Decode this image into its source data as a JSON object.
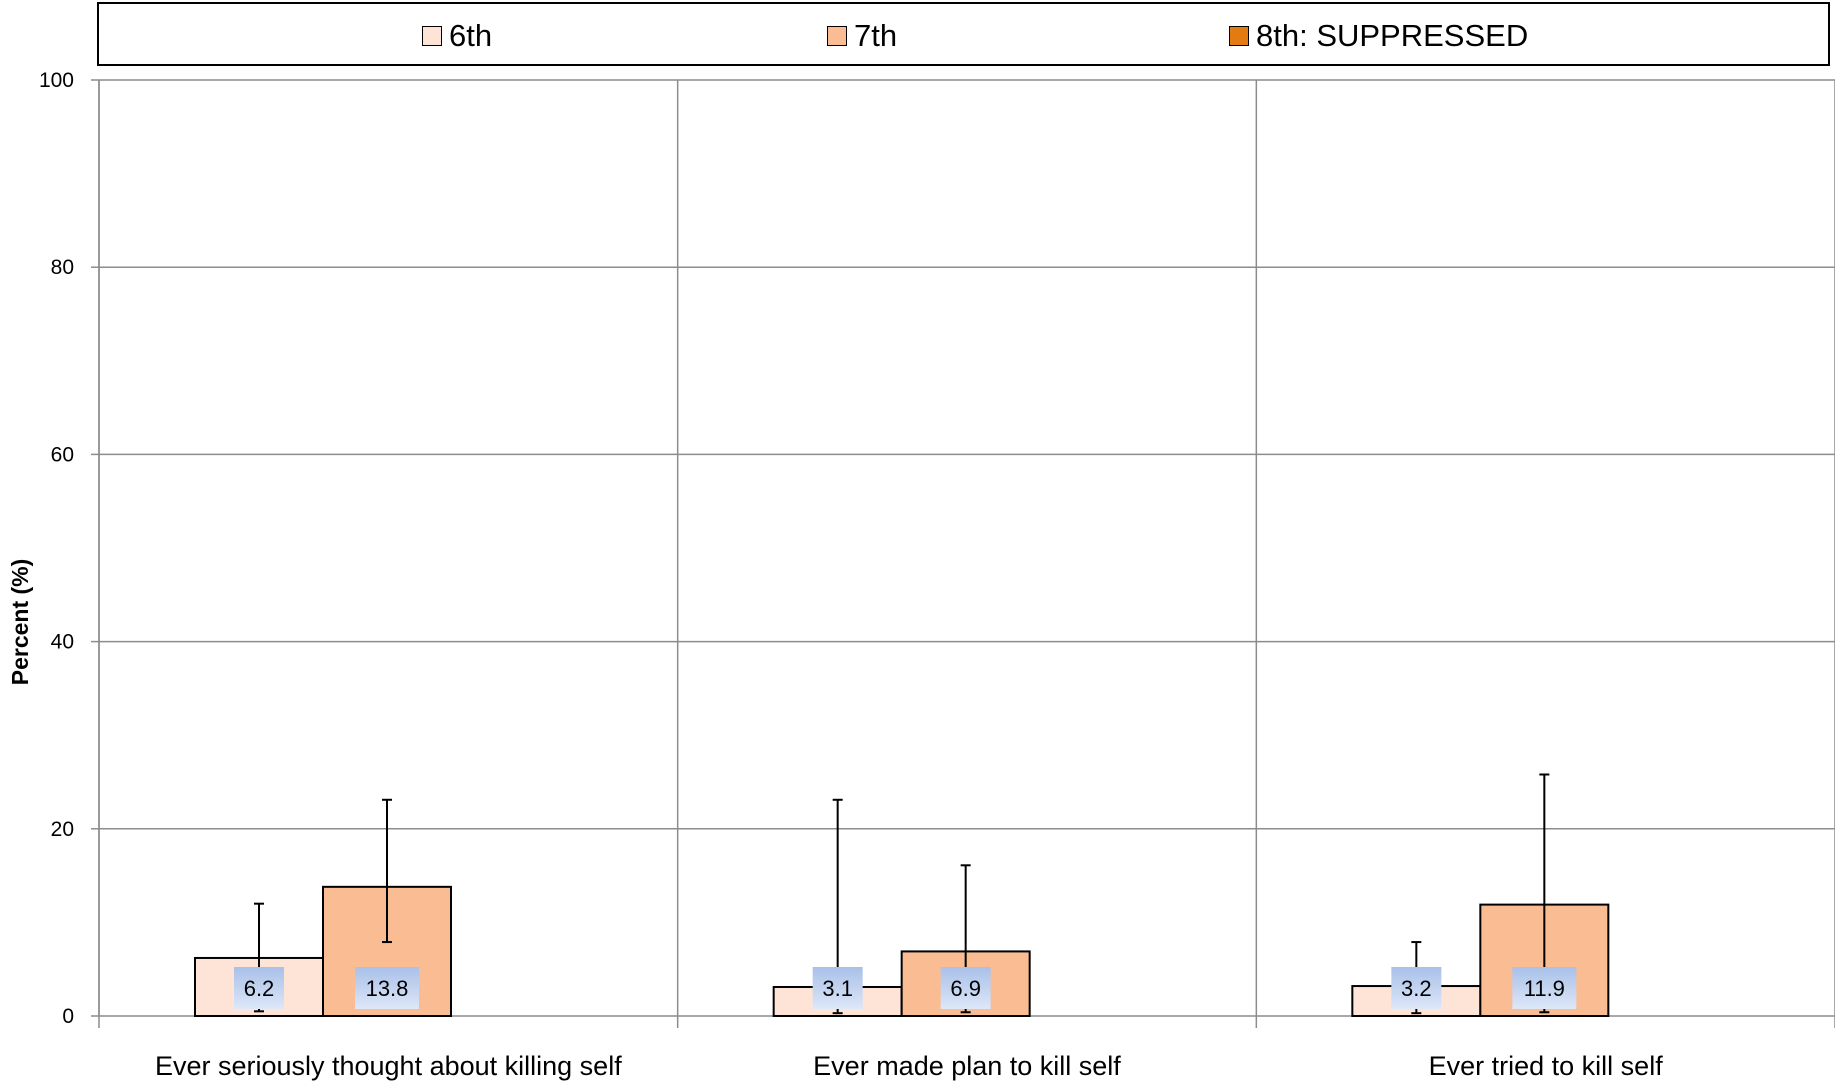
{
  "chart_data": {
    "type": "bar",
    "categories": [
      "Ever seriously thought about killing self",
      "Ever made plan to kill self",
      "Ever tried to kill self"
    ],
    "series": [
      {
        "name": "6th",
        "values": [
          6.2,
          3.1,
          3.2
        ],
        "labels": [
          "6.2",
          "3.1",
          "3.2"
        ],
        "error_low": [
          0.5,
          0.3,
          0.3
        ],
        "error_high": [
          12.0,
          23.1,
          7.9
        ],
        "color": "#fde4d6"
      },
      {
        "name": "7th",
        "values": [
          13.8,
          6.9,
          11.9
        ],
        "labels": [
          "13.8",
          "6.9",
          "11.9"
        ],
        "error_low": [
          7.9,
          0.4,
          0.4
        ],
        "error_high": [
          23.1,
          16.1,
          25.8
        ],
        "color": "#f9bc93"
      },
      {
        "name": "8th: SUPPRESSED",
        "values": [
          null,
          null,
          null
        ],
        "color": "#e47b12"
      }
    ],
    "title": "",
    "xlabel": "",
    "ylabel": "Percent (%)",
    "ylim": [
      0,
      100
    ],
    "yticks": [
      "0",
      "20",
      "40",
      "60",
      "80",
      "100"
    ],
    "grid": true,
    "legend_position": "top",
    "data_label_bg": [
      "#a9c0e8",
      "#dde7f8"
    ]
  }
}
